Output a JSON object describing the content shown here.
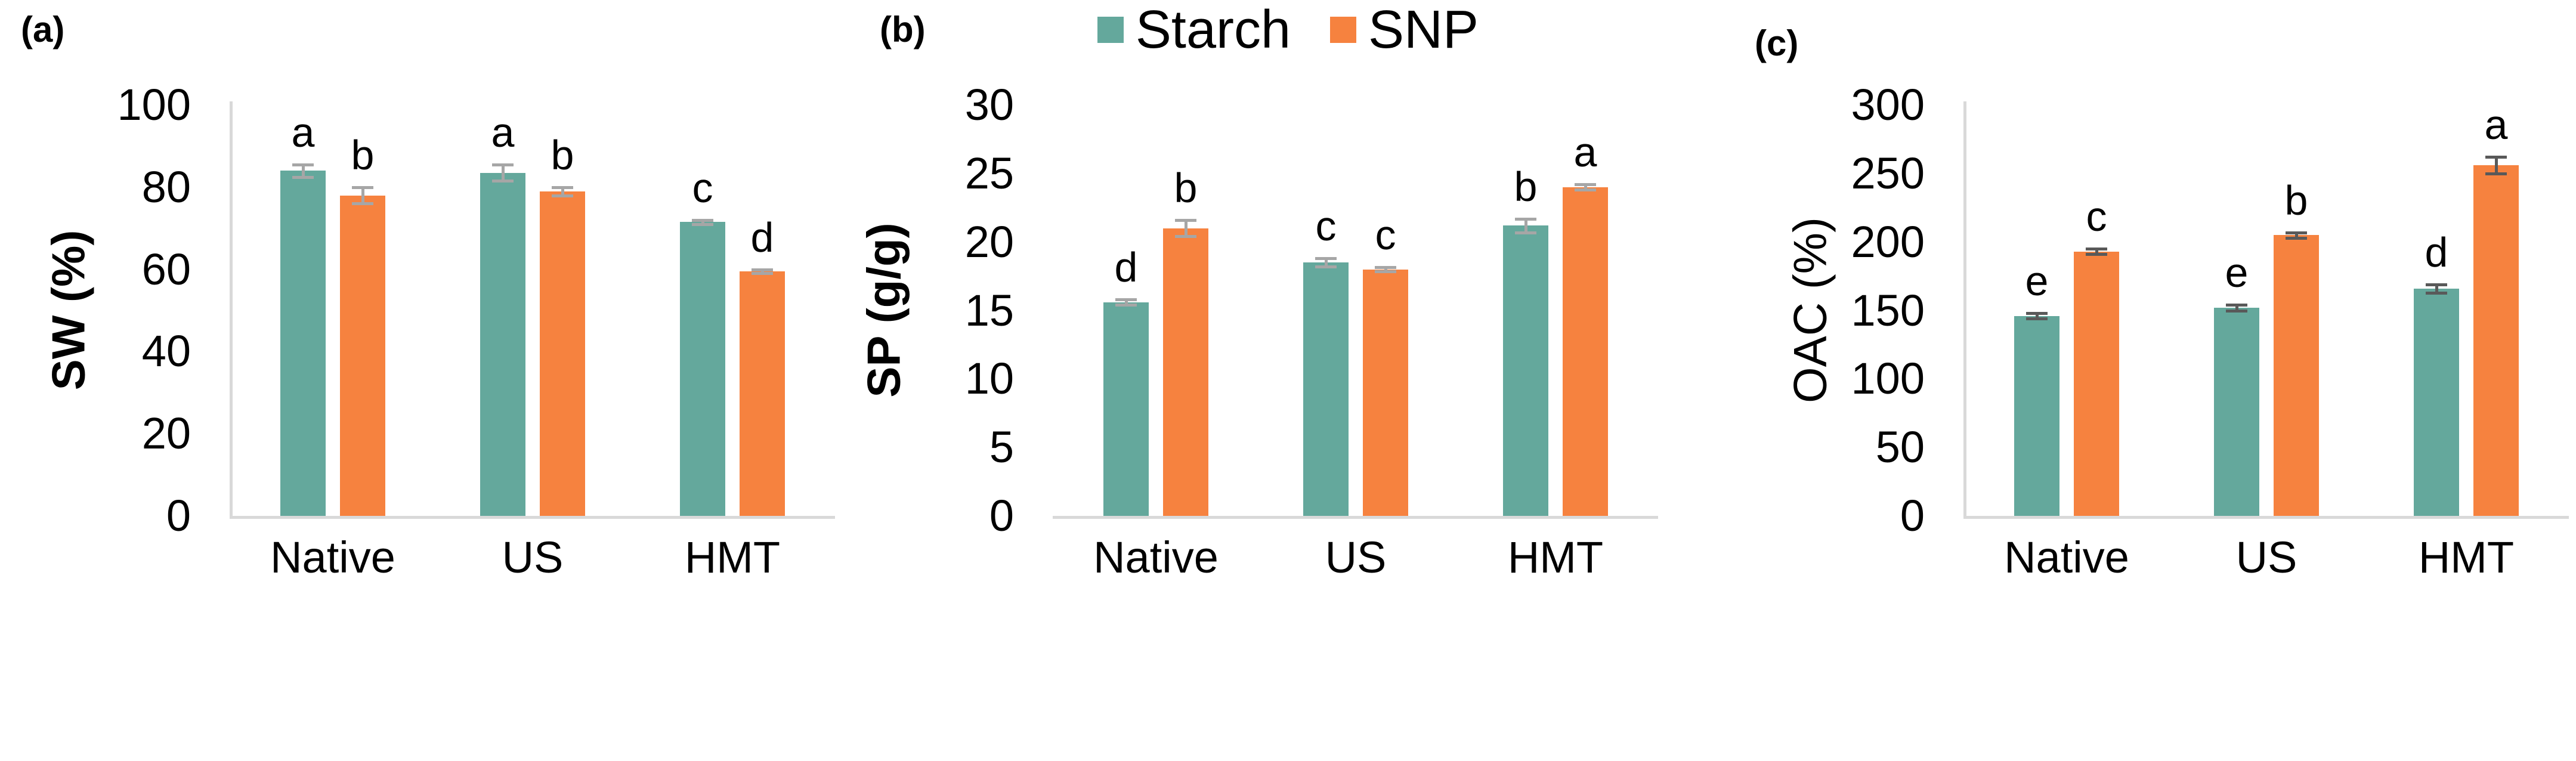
{
  "figure": {
    "colors": {
      "starch": "#64A89C",
      "snp": "#F6823F",
      "axis_line": "#D9D9D9",
      "error_light": "#A6A6A6",
      "error_dark": "#595959",
      "text": "#000000"
    },
    "legend": [
      {
        "label": "Starch",
        "color_key": "starch"
      },
      {
        "label": "SNP",
        "color_key": "snp"
      }
    ]
  },
  "chart_data": [
    {
      "panel_label": "(a)",
      "type": "bar",
      "ylabel": "SW (%)",
      "ylabel_bold": true,
      "ylim": [
        0,
        100
      ],
      "yticks": [
        0,
        20,
        40,
        60,
        80,
        100
      ],
      "categories": [
        "Native",
        "US",
        "HMT"
      ],
      "grid": false,
      "legend_position": "bottom",
      "y_axis_line": true,
      "error_color_key": "error_light",
      "series": [
        {
          "name": "Starch",
          "values": [
            84,
            83.5,
            71.5
          ],
          "errors": [
            1.5,
            2,
            0.5
          ],
          "sig_letters": [
            "a",
            "a",
            "c"
          ]
        },
        {
          "name": "SNP",
          "values": [
            78,
            79,
            59.5
          ],
          "errors": [
            2,
            1,
            0.5
          ],
          "sig_letters": [
            "b",
            "b",
            "d"
          ]
        }
      ]
    },
    {
      "panel_label": "(b)",
      "type": "bar",
      "ylabel": "SP (g/g)",
      "ylabel_bold": true,
      "ylim": [
        0,
        30
      ],
      "yticks": [
        0,
        5,
        10,
        15,
        20,
        25,
        30
      ],
      "categories": [
        "Native",
        "US",
        "HMT"
      ],
      "grid": false,
      "legend_position": "bottom",
      "y_axis_line": false,
      "error_color_key": "error_light",
      "series": [
        {
          "name": "Starch",
          "values": [
            15.6,
            18.5,
            21.2
          ],
          "errors": [
            0.2,
            0.3,
            0.5
          ],
          "sig_letters": [
            "d",
            "c",
            "b"
          ]
        },
        {
          "name": "SNP",
          "values": [
            21,
            18,
            24
          ],
          "errors": [
            0.6,
            0.15,
            0.2
          ],
          "sig_letters": [
            "b",
            "c",
            "a"
          ]
        }
      ]
    },
    {
      "panel_label": "(c)",
      "type": "bar",
      "ylabel": "OAC (%)",
      "ylabel_bold": false,
      "ylim": [
        0,
        300
      ],
      "yticks": [
        0,
        50,
        100,
        150,
        200,
        250,
        300
      ],
      "categories": [
        "Native",
        "US",
        "HMT"
      ],
      "grid": false,
      "legend_position": "bottom",
      "y_axis_line": true,
      "error_color_key": "error_dark",
      "series": [
        {
          "name": "Starch",
          "values": [
            146,
            152,
            166
          ],
          "errors": [
            2,
            2,
            3
          ],
          "sig_letters": [
            "e",
            "e",
            "d"
          ]
        },
        {
          "name": "SNP",
          "values": [
            193,
            205,
            256
          ],
          "errors": [
            2,
            2,
            6
          ],
          "sig_letters": [
            "c",
            "b",
            "a"
          ]
        }
      ]
    }
  ]
}
